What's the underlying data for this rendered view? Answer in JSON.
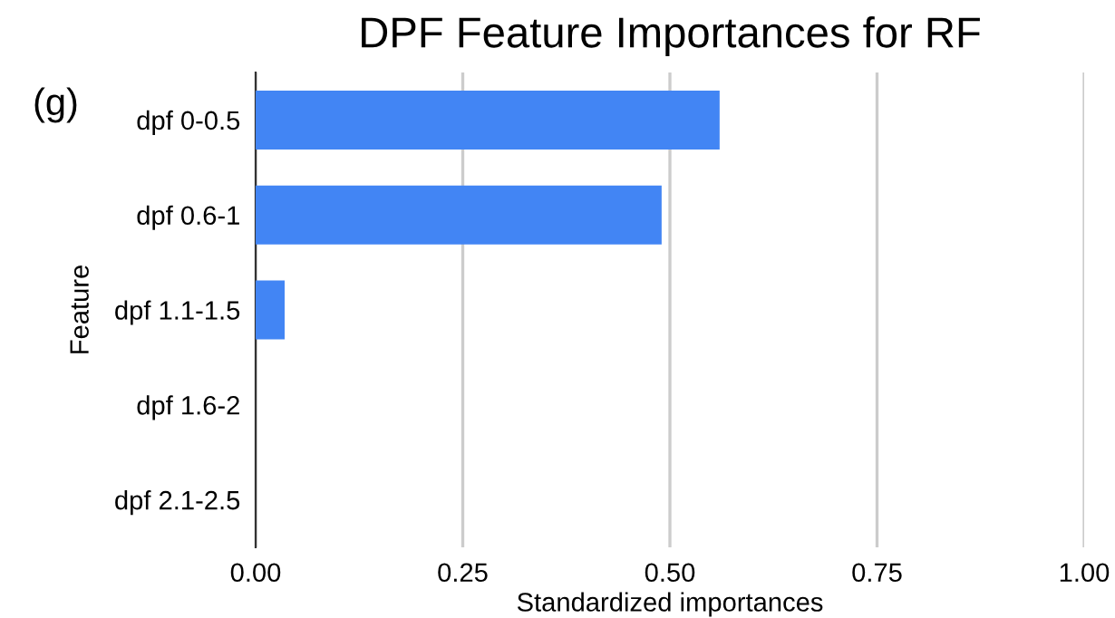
{
  "chart_data": {
    "type": "bar",
    "orientation": "horizontal",
    "title": "DPF Feature Importances for RF",
    "xlabel": "Standardized importances",
    "ylabel": "Feature",
    "annotations": [
      "(g)"
    ],
    "categories": [
      "dpf 0-0.5",
      "dpf 0.6-1",
      "dpf 1.1-1.5",
      "dpf 1.6-2",
      "dpf 2.1-2.5"
    ],
    "values": [
      0.56,
      0.49,
      0.035,
      0,
      0
    ],
    "color": "#4285f4",
    "xlim": [
      0,
      1
    ],
    "xticks": [
      {
        "value": 0,
        "label": "0.00"
      },
      {
        "value": 0.25,
        "label": "0.25"
      },
      {
        "value": 0.5,
        "label": "0.50"
      },
      {
        "value": 0.75,
        "label": "0.75"
      },
      {
        "value": 1,
        "label": "1.00"
      }
    ],
    "grid": "x"
  }
}
